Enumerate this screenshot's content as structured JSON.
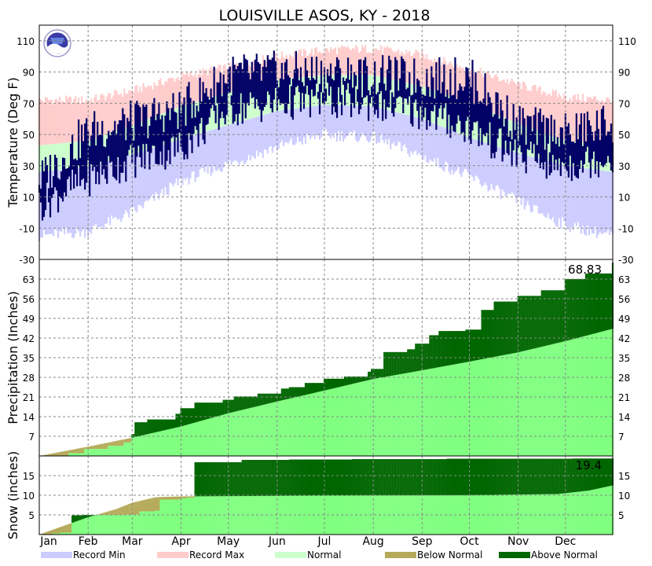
{
  "chart_data": {
    "type": "area",
    "title": "LOUISVILLE   ASOS, KY - 2018",
    "months": [
      "Jan",
      "Feb",
      "Mar",
      "Apr",
      "May",
      "Jun",
      "Jul",
      "Aug",
      "Sep",
      "Oct",
      "Nov",
      "Dec"
    ],
    "legend": [
      {
        "label": "Record Min",
        "color": "#ccccff"
      },
      {
        "label": "Record Max",
        "color": "#ffcccc"
      },
      {
        "label": "Normal",
        "color": "#ccffcc"
      },
      {
        "label": "Below Normal",
        "color": "#b5aa5a"
      },
      {
        "label": "Above Normal",
        "color": "#006600"
      }
    ],
    "panels": [
      {
        "id": "temperature",
        "ylabel": "Temperature (Deg F)",
        "ylim": [
          -30,
          120
        ],
        "ticks": [
          -30,
          -10,
          10,
          30,
          50,
          70,
          90,
          110
        ],
        "record_min_color": "#ccccff",
        "record_max_color": "#ffcccc",
        "normal_color": "#ccffcc",
        "observed_color": "#000066",
        "annual_cycle_days": [
          1,
          32,
          60,
          91,
          121,
          152,
          182,
          213,
          244,
          274,
          305,
          335,
          365
        ],
        "record_max": [
          72,
          72,
          78,
          87,
          93,
          100,
          104,
          105,
          101,
          92,
          82,
          74,
          72
        ],
        "record_min": [
          -15,
          -12,
          0,
          20,
          31,
          42,
          50,
          48,
          36,
          23,
          7,
          -8,
          -15
        ],
        "normal_high": [
          43,
          46,
          56,
          68,
          77,
          85,
          88,
          88,
          81,
          70,
          57,
          46,
          43
        ],
        "normal_low": [
          26,
          29,
          37,
          47,
          56,
          65,
          69,
          68,
          60,
          48,
          38,
          30,
          26
        ],
        "observed_high": [
          20,
          52,
          58,
          66,
          88,
          90,
          89,
          87,
          86,
          86,
          56,
          50,
          58
        ],
        "observed_low": [
          5,
          22,
          33,
          42,
          66,
          70,
          72,
          70,
          64,
          54,
          36,
          30,
          36
        ]
      },
      {
        "id": "precipitation",
        "ylabel": "Precipitation (Inches)",
        "ylim": [
          0,
          70
        ],
        "ticks": [
          7,
          14,
          21,
          28,
          35,
          42,
          49,
          56,
          63
        ],
        "total_label": "68.83",
        "normal_color": "#80ff80",
        "above_color": "#006600",
        "below_color": "#b5aa5a",
        "normal_cumulative": {
          "days": [
            1,
            32,
            60,
            91,
            121,
            152,
            182,
            213,
            244,
            274,
            305,
            335,
            365
          ],
          "values": [
            0,
            3.3,
            6.5,
            10.5,
            15.2,
            19.4,
            23.3,
            27.4,
            30.5,
            33.6,
            36.9,
            40.9,
            45.3
          ]
        },
        "observed_cumulative": {
          "days": [
            1,
            20,
            30,
            45,
            55,
            60,
            62,
            70,
            88,
            91,
            100,
            118,
            125,
            140,
            155,
            160,
            170,
            182,
            195,
            210,
            212,
            220,
            235,
            240,
            249,
            255,
            272,
            282,
            290,
            305,
            320,
            335,
            348,
            365
          ],
          "values": [
            0,
            1,
            2.5,
            3.6,
            4.8,
            7.8,
            12,
            13,
            15,
            17,
            19,
            20,
            21.2,
            22.2,
            24,
            24.5,
            26,
            27.5,
            28.3,
            30,
            31,
            37,
            38,
            40,
            43,
            44.5,
            45,
            52,
            55,
            57,
            59,
            63,
            65,
            68.83
          ]
        }
      },
      {
        "id": "snow",
        "ylabel": "Snow (inches)",
        "ylim": [
          0,
          20
        ],
        "ticks": [
          5,
          10,
          15
        ],
        "total_label": "19.4",
        "normal_color": "#80ff80",
        "above_color": "#006600",
        "below_color": "#b5aa5a",
        "normal_cumulative": {
          "days": [
            1,
            15,
            32,
            50,
            60,
            75,
            91,
            180,
            270,
            330,
            350,
            365
          ],
          "values": [
            0,
            2,
            4.4,
            6.5,
            8.1,
            9.5,
            9.7,
            9.9,
            10,
            10.3,
            11.2,
            12.5
          ]
        },
        "observed_cumulative": {
          "days": [
            1,
            10,
            15,
            22,
            30,
            40,
            55,
            65,
            75,
            78,
            90,
            91,
            95,
            100,
            130,
            160,
            200,
            260,
            340,
            365
          ],
          "values": [
            0,
            0.3,
            0.5,
            4.9,
            5,
            5,
            5.1,
            5.9,
            6.1,
            8.9,
            9,
            9.2,
            9.4,
            18.4,
            19,
            19.1,
            19.2,
            19.3,
            19.35,
            19.4
          ]
        }
      }
    ]
  }
}
